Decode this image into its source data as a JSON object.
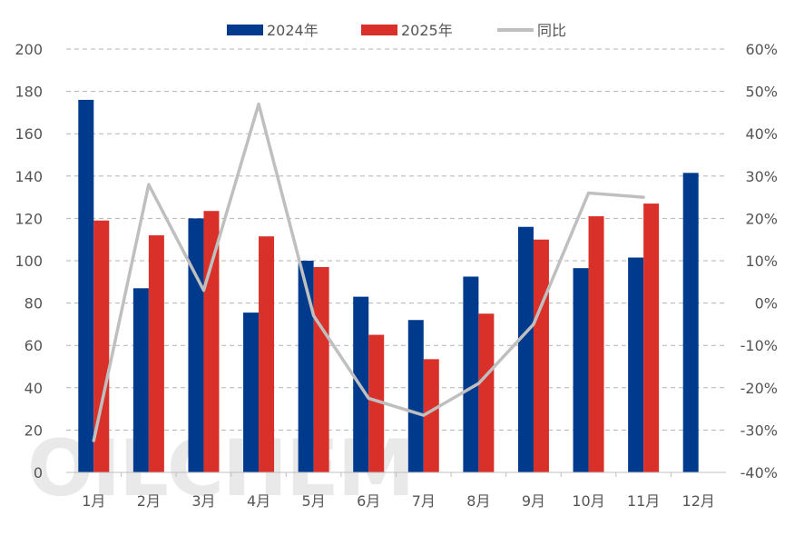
{
  "watermark": "OILCHEM",
  "chart_data": {
    "type": "bar",
    "categories": [
      "1月",
      "2月",
      "3月",
      "4月",
      "5月",
      "6月",
      "7月",
      "8月",
      "9月",
      "10月",
      "11月",
      "12月"
    ],
    "series": [
      {
        "name": "2024年",
        "type": "bar",
        "axis": "left",
        "color": "#003a8c",
        "values": [
          176,
          87,
          120,
          75.5,
          100,
          83,
          72,
          92.5,
          116,
          96.5,
          101.5,
          141.5
        ]
      },
      {
        "name": "2025年",
        "type": "bar",
        "axis": "left",
        "color": "#d9302a",
        "values": [
          119,
          112,
          123.5,
          111.5,
          97,
          65,
          53.5,
          75,
          110,
          121,
          127,
          null
        ]
      },
      {
        "name": "同比",
        "type": "line",
        "axis": "right",
        "color": "#bfbfbf",
        "values": [
          -32.5,
          28,
          3,
          47,
          -3,
          -22.5,
          -26.5,
          -19,
          -5,
          26,
          25,
          null
        ]
      }
    ],
    "y_left": {
      "min": 0,
      "max": 200,
      "ticks": [
        "0",
        "20",
        "40",
        "60",
        "80",
        "100",
        "120",
        "140",
        "160",
        "180",
        "200"
      ]
    },
    "y_right": {
      "min": -40,
      "max": 60,
      "ticks": [
        "-40%",
        "-30%",
        "-20%",
        "-10%",
        "0%",
        "10%",
        "20%",
        "30%",
        "40%",
        "50%",
        "60%"
      ]
    },
    "legend": [
      "2024年",
      "2025年",
      "同比"
    ],
    "legend_position": "top-center",
    "grid": true,
    "title": "",
    "xlabel": "",
    "ylabel": ""
  }
}
